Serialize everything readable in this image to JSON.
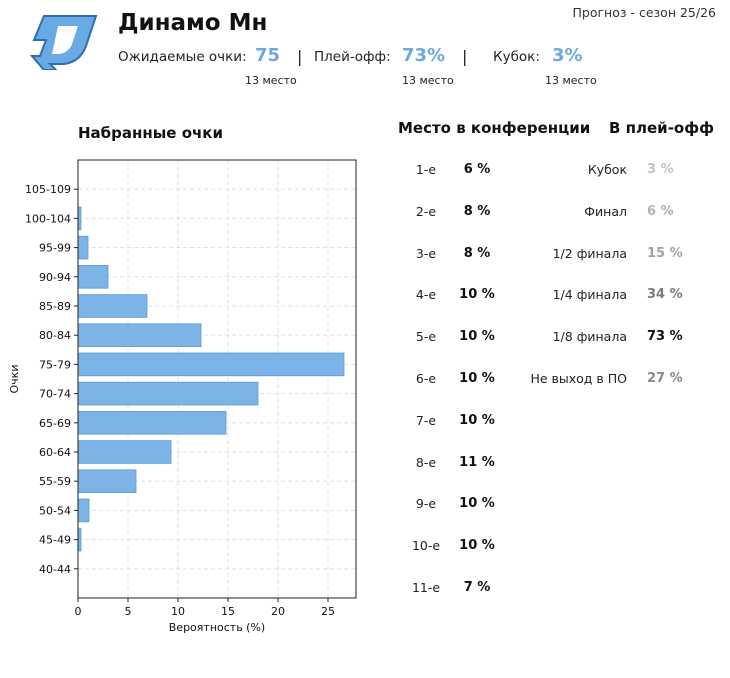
{
  "header": {
    "team_name": "Динамо Мн",
    "season": "Прогноз - сезон 25/26",
    "expected_points_label": "Ожидаемые очки:",
    "expected_points_value": "75",
    "playoff_label": "Плей-офф:",
    "playoff_value": "73%",
    "cup_label": "Кубок:",
    "cup_value": "3%",
    "separator": "|",
    "points_rank": "13 место",
    "playoff_rank": "13 место",
    "cup_rank": "13 место"
  },
  "colors": {
    "accent": "#6fa8dc",
    "bar_fill": "#7cb4e8",
    "bar_stroke": "#5a9bd4",
    "logo_blue": "#6aaae4",
    "logo_dark": "#2f6fb0"
  },
  "conference": {
    "title": "Место в конференции",
    "rows": [
      {
        "place": "1-е",
        "pct": "6 %"
      },
      {
        "place": "2-е",
        "pct": "8 %"
      },
      {
        "place": "3-е",
        "pct": "8 %"
      },
      {
        "place": "4-е",
        "pct": "10 %"
      },
      {
        "place": "5-е",
        "pct": "10 %"
      },
      {
        "place": "6-е",
        "pct": "10 %"
      },
      {
        "place": "7-е",
        "pct": "10 %"
      },
      {
        "place": "8-е",
        "pct": "11 %"
      },
      {
        "place": "9-е",
        "pct": "10 %"
      },
      {
        "place": "10-е",
        "pct": "10 %"
      },
      {
        "place": "11-е",
        "pct": "7 %"
      }
    ]
  },
  "playoff": {
    "title": "В плей-офф",
    "rows": [
      {
        "stage": "Кубок",
        "pct": "3 %",
        "color": "#c4c4c4"
      },
      {
        "stage": "Финал",
        "pct": "6 %",
        "color": "#b4b4b4"
      },
      {
        "stage": "1/2 финала",
        "pct": "15 %",
        "color": "#a2a2a2"
      },
      {
        "stage": "1/4 финала",
        "pct": "34 %",
        "color": "#7a7a7a"
      },
      {
        "stage": "1/8 финала",
        "pct": "73 %",
        "color": "#111111"
      },
      {
        "stage": "Не выход в ПО",
        "pct": "27 %",
        "color": "#8a8a8a"
      }
    ]
  },
  "chart_data": {
    "type": "bar",
    "orientation": "horizontal",
    "title": "Набранные очки",
    "xlabel": "Вероятность (%)",
    "ylabel": "Очки",
    "categories": [
      "105-109",
      "100-104",
      "95-99",
      "90-94",
      "85-89",
      "80-84",
      "75-79",
      "70-74",
      "65-69",
      "60-64",
      "55-59",
      "50-54",
      "45-49",
      "40-44"
    ],
    "values": [
      0,
      0.3,
      1.0,
      3.0,
      6.9,
      12.3,
      26.6,
      18.0,
      14.8,
      9.3,
      5.8,
      1.1,
      0.3,
      0
    ],
    "xlim": [
      0,
      27.8
    ],
    "xticks": [
      "0",
      "5",
      "10",
      "15",
      "20",
      "25"
    ],
    "grid": true
  }
}
